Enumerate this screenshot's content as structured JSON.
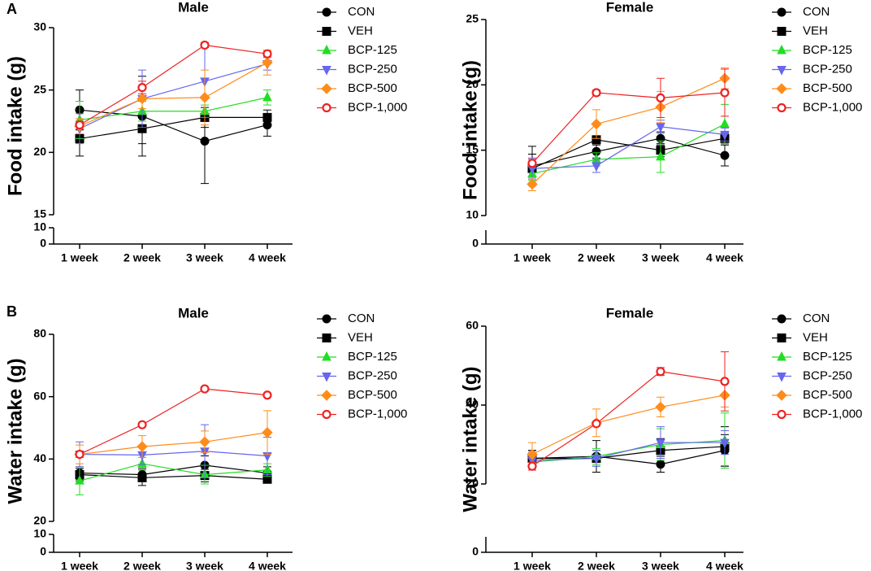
{
  "chart_data": [
    {
      "type": "line",
      "panel_label": "A",
      "title": "Male",
      "y_label": "Food intake (g)",
      "categories": [
        "1 week",
        "2 week",
        "3 week",
        "4 week"
      ],
      "ylim": [
        15,
        30
      ],
      "yticks": [
        15,
        20,
        25,
        30
      ],
      "ylim_lower": [
        0,
        10
      ],
      "yticks_lower": [
        0,
        10
      ],
      "series": [
        {
          "name": "CON",
          "color": "#000000",
          "marker": "circle",
          "values": [
            23.4,
            22.9,
            20.9,
            22.2
          ],
          "errors": [
            1.6,
            3.2,
            3.4,
            0.9
          ]
        },
        {
          "name": "VEH",
          "color": "#000000",
          "marker": "square",
          "values": [
            21.1,
            21.9,
            22.8,
            22.8
          ],
          "errors": [
            1.4,
            1.2,
            0.8,
            0.6
          ]
        },
        {
          "name": "BCP-125",
          "color": "#22dd22",
          "marker": "triangle-up",
          "values": [
            22.6,
            23.3,
            23.3,
            24.4
          ],
          "errors": [
            1.5,
            0.8,
            0.5,
            0.6
          ]
        },
        {
          "name": "BCP-250",
          "color": "#6666ee",
          "marker": "triangle-down",
          "values": [
            21.9,
            24.3,
            25.7,
            27.1
          ],
          "errors": [
            1.2,
            2.3,
            2.9,
            0.5
          ]
        },
        {
          "name": "BCP-500",
          "color": "#ff8c1a",
          "marker": "diamond",
          "values": [
            22.1,
            24.3,
            24.4,
            27.2
          ],
          "errors": [
            0.6,
            0.8,
            2.2,
            1.0
          ]
        },
        {
          "name": "BCP-1,000",
          "color": "#ee2222",
          "marker": "open-circle",
          "values": [
            22.2,
            25.2,
            28.6,
            27.9
          ],
          "errors": [
            0.3,
            0.5,
            0.2,
            0.2
          ]
        }
      ]
    },
    {
      "type": "line",
      "title": "Female",
      "y_label": "Food intake (g)",
      "categories": [
        "1 week",
        "2 week",
        "3 week",
        "4 week"
      ],
      "ylim": [
        10,
        25
      ],
      "yticks": [
        10,
        15,
        20,
        25
      ],
      "ylim_lower": [
        0,
        10
      ],
      "yticks_lower": [
        0
      ],
      "series": [
        {
          "name": "CON",
          "color": "#000000",
          "marker": "circle",
          "values": [
            13.8,
            14.9,
            15.9,
            14.6
          ],
          "errors": [
            1.5,
            0.5,
            0.5,
            0.8
          ]
        },
        {
          "name": "VEH",
          "color": "#000000",
          "marker": "square",
          "values": [
            13.6,
            15.8,
            15.0,
            15.9
          ],
          "errors": [
            1.1,
            0.3,
            0.5,
            0.4
          ]
        },
        {
          "name": "BCP-125",
          "color": "#22dd22",
          "marker": "triangle-up",
          "values": [
            13.2,
            14.3,
            14.5,
            17.0
          ],
          "errors": [
            0.5,
            0.5,
            1.2,
            1.5
          ]
        },
        {
          "name": "BCP-250",
          "color": "#6666ee",
          "marker": "triangle-down",
          "values": [
            13.6,
            13.8,
            16.8,
            16.2
          ],
          "errors": [
            0.8,
            0.5,
            0.5,
            0.5
          ]
        },
        {
          "name": "BCP-500",
          "color": "#ff8c1a",
          "marker": "diamond",
          "values": [
            12.4,
            17.0,
            18.3,
            20.5
          ],
          "errors": [
            0.5,
            1.1,
            1.2,
            0.8
          ]
        },
        {
          "name": "BCP-1,000",
          "color": "#ee2222",
          "marker": "open-circle",
          "values": [
            14.0,
            19.4,
            19.0,
            19.4
          ],
          "errors": [
            0.3,
            0.2,
            1.5,
            1.8
          ]
        }
      ]
    },
    {
      "type": "line",
      "panel_label": "B",
      "title": "Male",
      "y_label": "Water intake (g)",
      "categories": [
        "1 week",
        "2 week",
        "3 week",
        "4 week"
      ],
      "ylim": [
        20,
        80
      ],
      "yticks": [
        20,
        40,
        60,
        80
      ],
      "ylim_lower": [
        0,
        10
      ],
      "yticks_lower": [
        0,
        10
      ],
      "series": [
        {
          "name": "CON",
          "color": "#000000",
          "marker": "circle",
          "values": [
            35.5,
            35.0,
            38.0,
            35.5
          ],
          "errors": [
            2,
            2,
            3,
            2
          ]
        },
        {
          "name": "VEH",
          "color": "#000000",
          "marker": "square",
          "values": [
            35.0,
            34.0,
            34.7,
            33.5
          ],
          "errors": [
            2,
            2.5,
            2,
            1
          ]
        },
        {
          "name": "BCP-125",
          "color": "#22dd22",
          "marker": "triangle-up",
          "values": [
            33.0,
            38.5,
            35.0,
            36.5
          ],
          "errors": [
            4.5,
            2,
            3,
            2
          ]
        },
        {
          "name": "BCP-250",
          "color": "#6666ee",
          "marker": "triangle-down",
          "values": [
            41.5,
            41.3,
            42.5,
            41.0
          ],
          "errors": [
            4,
            3,
            8.5,
            6
          ]
        },
        {
          "name": "BCP-500",
          "color": "#ff8c1a",
          "marker": "diamond",
          "values": [
            41.5,
            44.0,
            45.5,
            48.5
          ],
          "errors": [
            3,
            3.5,
            3.5,
            7
          ]
        },
        {
          "name": "BCP-1,000",
          "color": "#ee2222",
          "marker": "open-circle",
          "values": [
            41.5,
            51.0,
            62.5,
            60.5
          ],
          "errors": [
            1,
            0.5,
            0.5,
            0.5
          ]
        }
      ]
    },
    {
      "type": "line",
      "title": "Female",
      "y_label": "Water intake (g)",
      "categories": [
        "1 week",
        "2 week",
        "3 week",
        "4 week"
      ],
      "ylim": [
        20,
        60
      ],
      "yticks": [
        20,
        40,
        60
      ],
      "ylim_lower": [
        0,
        10
      ],
      "yticks_lower": [
        0
      ],
      "series": [
        {
          "name": "CON",
          "color": "#000000",
          "marker": "circle",
          "values": [
            26.5,
            27.0,
            25.0,
            28.5
          ],
          "errors": [
            2,
            4,
            2,
            4
          ]
        },
        {
          "name": "VEH",
          "color": "#000000",
          "marker": "square",
          "values": [
            26.5,
            26.5,
            28.5,
            29.5
          ],
          "errors": [
            2,
            2,
            3,
            5
          ]
        },
        {
          "name": "BCP-125",
          "color": "#22dd22",
          "marker": "triangle-up",
          "values": [
            25.5,
            27.0,
            30.0,
            31.0
          ],
          "errors": [
            2,
            2,
            4,
            7
          ]
        },
        {
          "name": "BCP-250",
          "color": "#6666ee",
          "marker": "triangle-down",
          "values": [
            26.0,
            26.5,
            30.5,
            30.5
          ],
          "errors": [
            2,
            2,
            4,
            3
          ]
        },
        {
          "name": "BCP-500",
          "color": "#ff8c1a",
          "marker": "diamond",
          "values": [
            27.5,
            35.5,
            39.5,
            42.5
          ],
          "errors": [
            3,
            3.5,
            2.5,
            3
          ]
        },
        {
          "name": "BCP-1,000",
          "color": "#ee2222",
          "marker": "open-circle",
          "values": [
            24.5,
            35.3,
            48.5,
            46.0
          ],
          "errors": [
            1,
            0.5,
            1,
            7.5
          ]
        }
      ]
    }
  ]
}
